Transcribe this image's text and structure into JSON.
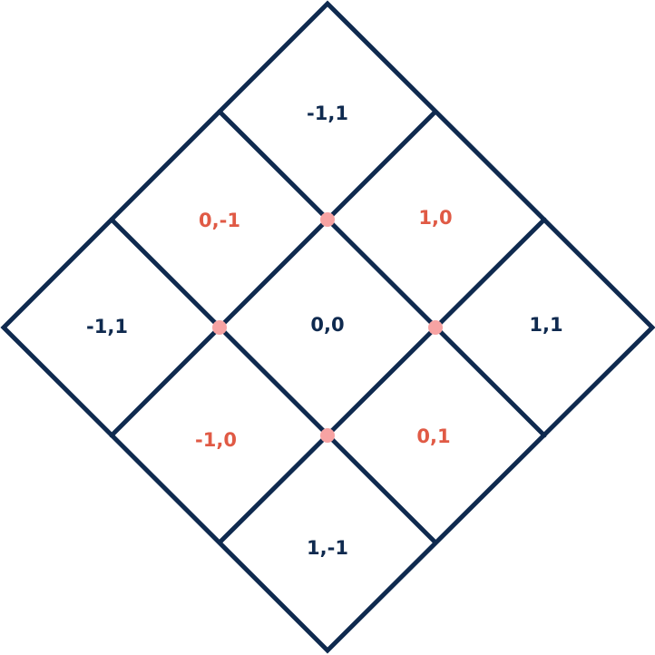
{
  "colors": {
    "line": "#0f2a4f",
    "highlight_label": "#e05a45",
    "intersection_dot": "#f7a3a3"
  },
  "cells": {
    "top": "-1,1",
    "upper_left": "0,-1",
    "upper_right": "1,0",
    "left": "-1,1",
    "center": "0,0",
    "right": "1,1",
    "lower_left": "-1,0",
    "lower_right": "0,1",
    "bottom": "1,-1"
  }
}
